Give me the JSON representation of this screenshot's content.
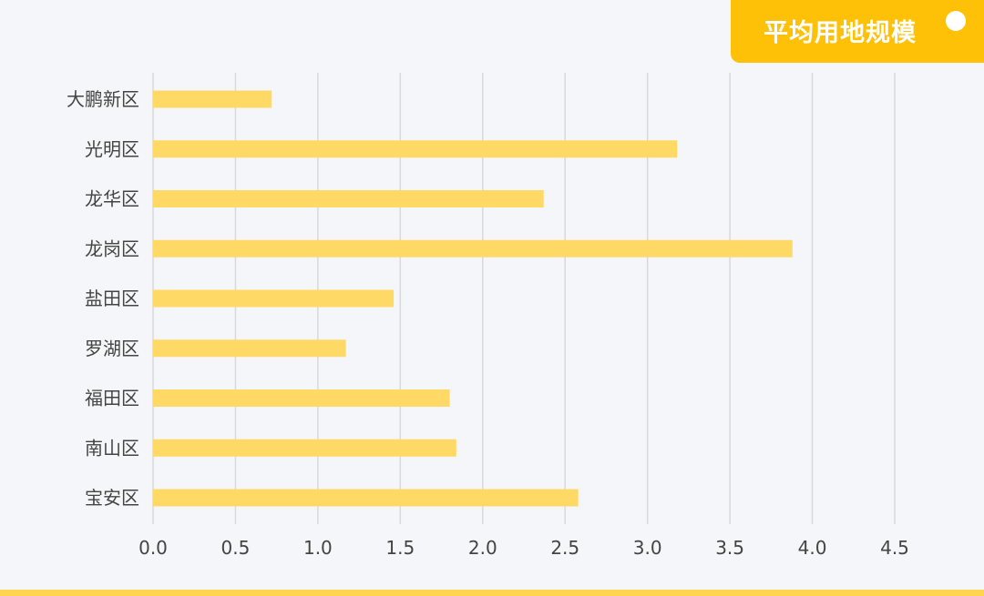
{
  "title": {
    "text": "平均用地规模"
  },
  "colors": {
    "bar": "#ffd966",
    "accent": "#ffc107",
    "grid": "#d9d9d9",
    "label": "#444444",
    "background": "#f5f6f9"
  },
  "chart_data": {
    "type": "bar",
    "orientation": "horizontal",
    "categories": [
      "大鹏新区",
      "光明区",
      "龙华区",
      "龙岗区",
      "盐田区",
      "罗湖区",
      "福田区",
      "南山区",
      "宝安区"
    ],
    "values": [
      0.72,
      3.18,
      2.37,
      3.88,
      1.46,
      1.17,
      1.8,
      1.84,
      2.58
    ],
    "xlim": [
      0,
      4.5
    ],
    "xticks": [
      "0.0",
      "0.5",
      "1.0",
      "1.5",
      "2.0",
      "2.5",
      "3.0",
      "3.5",
      "4.0",
      "4.5"
    ],
    "grid": true,
    "legend": "none"
  }
}
